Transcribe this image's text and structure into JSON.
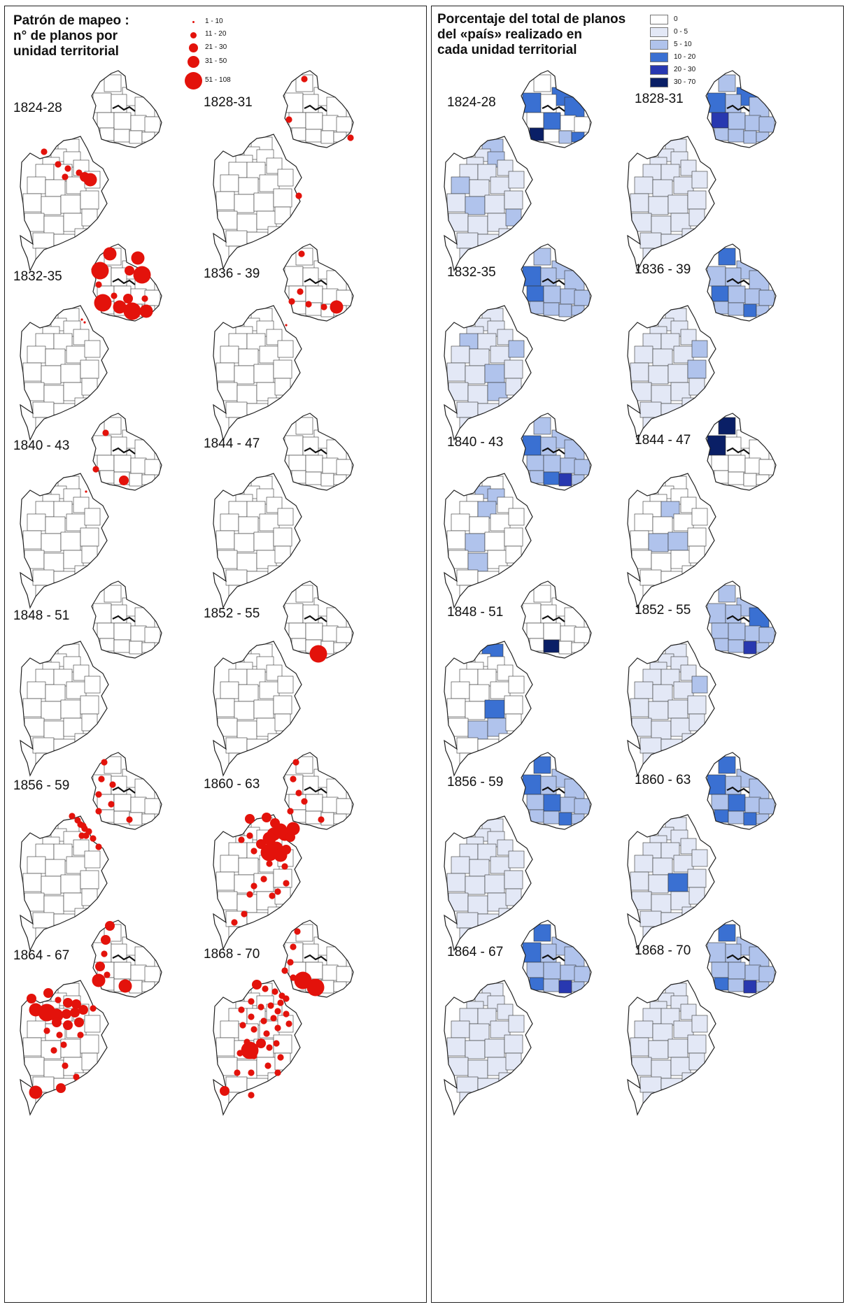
{
  "left_panel": {
    "title": "Patrón de mapeo :\nn° de planos por\nunidad territorial",
    "legend": [
      {
        "label": "1 - 10"
      },
      {
        "label": "11 - 20"
      },
      {
        "label": "21 - 30"
      },
      {
        "label": "31 - 50"
      },
      {
        "label": "51 - 108"
      }
    ],
    "symbol_color": "#e3120b",
    "periods": [
      {
        "label": "1824-28"
      },
      {
        "label": "1828-31"
      },
      {
        "label": "1832-35"
      },
      {
        "label": "1836 - 39"
      },
      {
        "label": "1840 - 43"
      },
      {
        "label": "1844 - 47"
      },
      {
        "label": "1848 - 51"
      },
      {
        "label": "1852 - 55"
      },
      {
        "label": "1856 - 59"
      },
      {
        "label": "1860 - 63"
      },
      {
        "label": "1864 - 67"
      },
      {
        "label": "1868 - 70"
      }
    ]
  },
  "right_panel": {
    "title": "Porcentaje del total de planos\ndel «país» realizado en\ncada unidad territorial",
    "legend": [
      {
        "label": "0",
        "color": "#ffffff"
      },
      {
        "label": "0 - 5",
        "color": "#e3e8f6"
      },
      {
        "label": "5 - 10",
        "color": "#b0c3ec"
      },
      {
        "label": "10 - 20",
        "color": "#3a70d2"
      },
      {
        "label": "20 - 30",
        "color": "#2838b0"
      },
      {
        "label": "30 - 70",
        "color": "#0a1f66"
      }
    ],
    "periods": [
      {
        "label": "1824-28"
      },
      {
        "label": "1828-31"
      },
      {
        "label": "1832-35"
      },
      {
        "label": "1836 - 39"
      },
      {
        "label": "1840 - 43"
      },
      {
        "label": "1844 - 47"
      },
      {
        "label": "1848 - 51"
      },
      {
        "label": "1852 - 55"
      },
      {
        "label": "1856 - 59"
      },
      {
        "label": "1860 - 63"
      },
      {
        "label": "1864 - 67"
      },
      {
        "label": "1868 - 70"
      }
    ]
  }
}
